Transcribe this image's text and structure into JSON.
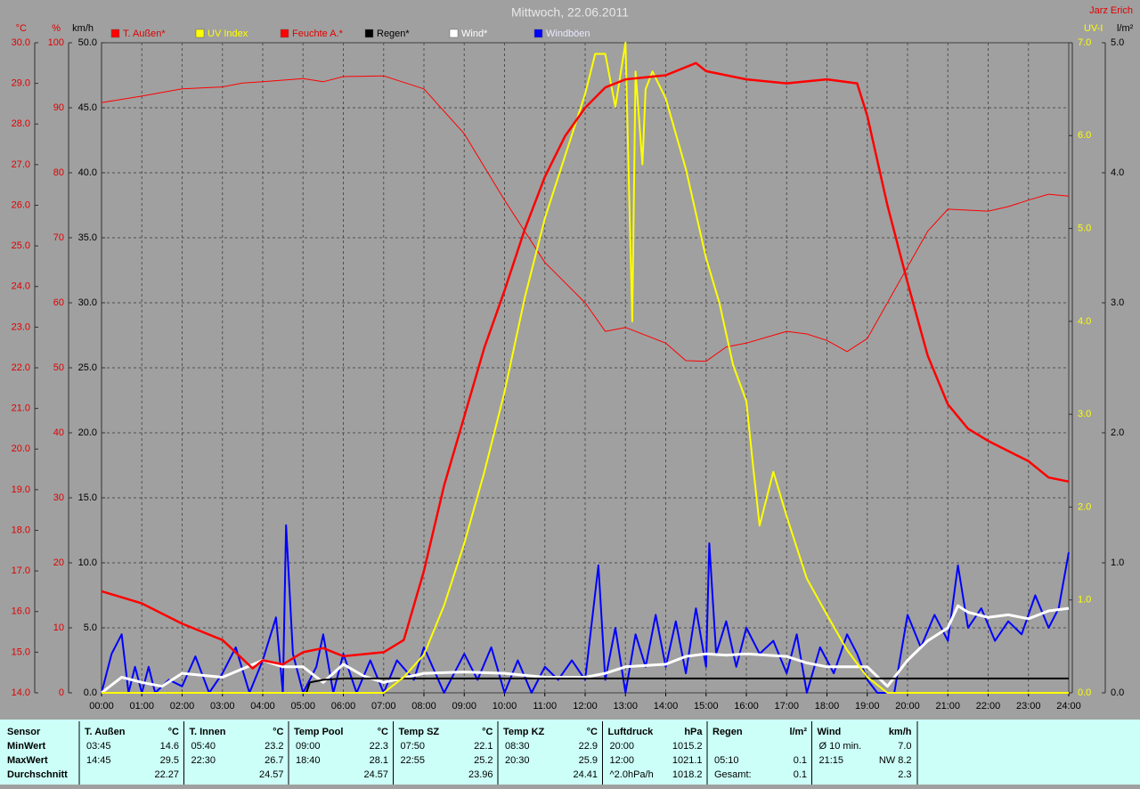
{
  "chart_data": {
    "type": "line",
    "title": "Mittwoch, 22.06.2011",
    "author": "Jarz Erich",
    "xlim": [
      0,
      24
    ],
    "xticks": [
      {
        "value": 0,
        "label": "00:00"
      },
      {
        "value": 1,
        "label": "01:00"
      },
      {
        "value": 2,
        "label": "02:00"
      },
      {
        "value": 3,
        "label": "03:00"
      },
      {
        "value": 4,
        "label": "04:00"
      },
      {
        "value": 5,
        "label": "05:00"
      },
      {
        "value": 6,
        "label": "06:00"
      },
      {
        "value": 7,
        "label": "07:00"
      },
      {
        "value": 8,
        "label": "08:00"
      },
      {
        "value": 9,
        "label": "09:00"
      },
      {
        "value": 10,
        "label": "10:00"
      },
      {
        "value": 11,
        "label": "11:00"
      },
      {
        "value": 12,
        "label": "12:00"
      },
      {
        "value": 13,
        "label": "13:00"
      },
      {
        "value": 14,
        "label": "14:00"
      },
      {
        "value": 15,
        "label": "15:00"
      },
      {
        "value": 16,
        "label": "16:00"
      },
      {
        "value": 17,
        "label": "17:00"
      },
      {
        "value": 18,
        "label": "18:00"
      },
      {
        "value": 19,
        "label": "19:00"
      },
      {
        "value": 20,
        "label": "20:00"
      },
      {
        "value": 21,
        "label": "21:00"
      },
      {
        "value": 22,
        "label": "22:00"
      },
      {
        "value": 23,
        "label": "23:00"
      },
      {
        "value": 24,
        "label": "24:00"
      }
    ],
    "grid": true,
    "y_axes": [
      {
        "label": "°C",
        "color": "#e00000",
        "side": "left",
        "lim": [
          14,
          30
        ],
        "ticks": [
          {
            "value": 30,
            "label": "30.0"
          },
          {
            "value": 29,
            "label": "29.0"
          },
          {
            "value": 28,
            "label": "28.0"
          },
          {
            "value": 27,
            "label": "27.0"
          },
          {
            "value": 26,
            "label": "26.0"
          },
          {
            "value": 25,
            "label": "25.0"
          },
          {
            "value": 24,
            "label": "24.0"
          },
          {
            "value": 23,
            "label": "23.0"
          },
          {
            "value": 22,
            "label": "22.0"
          },
          {
            "value": 21,
            "label": "21.0"
          },
          {
            "value": 20,
            "label": "20.0"
          },
          {
            "value": 19,
            "label": "19.0"
          },
          {
            "value": 18,
            "label": "18.0"
          },
          {
            "value": 17,
            "label": "17.0"
          },
          {
            "value": 16,
            "label": "16.0"
          },
          {
            "value": 15,
            "label": "15.0"
          },
          {
            "value": 14,
            "label": "14.0"
          }
        ]
      },
      {
        "label": "%",
        "color": "#e00000",
        "side": "left",
        "lim": [
          0,
          100
        ],
        "ticks": [
          100,
          90,
          80,
          70,
          60,
          50,
          40,
          30,
          20,
          10,
          0
        ]
      },
      {
        "label": "km/h",
        "color": "#000000",
        "side": "left",
        "lim": [
          0,
          50
        ],
        "grid": true,
        "ticks": [
          {
            "value": 50,
            "label": "50.0"
          },
          {
            "value": 45,
            "label": "45.0"
          },
          {
            "value": 40,
            "label": "40.0"
          },
          {
            "value": 35,
            "label": "35.0"
          },
          {
            "value": 30,
            "label": "30.0"
          },
          {
            "value": 25,
            "label": "25.0"
          },
          {
            "value": 20,
            "label": "20.0"
          },
          {
            "value": 15,
            "label": "15.0"
          },
          {
            "value": 10,
            "label": "10.0"
          },
          {
            "value": 5,
            "label": "5.0"
          },
          {
            "value": 0,
            "label": "0.0"
          }
        ]
      },
      {
        "label": "UV-I",
        "color": "#ffff00",
        "side": "right",
        "lim": [
          0,
          7
        ],
        "ticks": [
          {
            "value": 7,
            "label": "7.0"
          },
          {
            "value": 6,
            "label": "6.0"
          },
          {
            "value": 5,
            "label": "5.0"
          },
          {
            "value": 4,
            "label": "4.0"
          },
          {
            "value": 3,
            "label": "3.0"
          },
          {
            "value": 2,
            "label": "2.0"
          },
          {
            "value": 1,
            "label": "1.0"
          },
          {
            "value": 0,
            "label": "0.0"
          }
        ]
      },
      {
        "label": "l/m²",
        "color": "#000000",
        "side": "right",
        "lim": [
          0,
          5
        ],
        "ticks": [
          {
            "value": 5,
            "label": "5.0"
          },
          {
            "value": 4,
            "label": "4.0"
          },
          {
            "value": 3,
            "label": "3.0"
          },
          {
            "value": 2,
            "label": "2.0"
          },
          {
            "value": 1,
            "label": "1.0"
          },
          {
            "value": 0,
            "label": "0.0"
          }
        ]
      }
    ],
    "series": [
      {
        "name": "T. Außen*",
        "color": "#ff0000",
        "width": 2.5,
        "axis": 0,
        "x": [
          0,
          1,
          2,
          3,
          3.75,
          4,
          4.5,
          5,
          5.5,
          6,
          7,
          7.5,
          8,
          8.5,
          9,
          9.5,
          10,
          10.5,
          11,
          11.5,
          12,
          12.5,
          13,
          14,
          14.75,
          15,
          16,
          17,
          18,
          18.75,
          19,
          19.5,
          20,
          20.5,
          21,
          21.5,
          22,
          23,
          23.5,
          24
        ],
        "values": [
          16.5,
          16.2,
          15.7,
          15.3,
          14.6,
          14.8,
          14.7,
          15.0,
          15.1,
          14.9,
          15.0,
          15.3,
          17.0,
          19.1,
          20.8,
          22.5,
          23.9,
          25.4,
          26.7,
          27.7,
          28.4,
          28.9,
          29.1,
          29.2,
          29.5,
          29.3,
          29.1,
          29.0,
          29.1,
          29.0,
          28.2,
          26.0,
          24.1,
          22.3,
          21.1,
          20.5,
          20.2,
          19.7,
          19.3,
          19.2
        ]
      },
      {
        "name": "UV Index",
        "color": "#ffff00",
        "width": 2,
        "axis": 3,
        "x": [
          0,
          7,
          7.5,
          8,
          8.5,
          9,
          9.5,
          10,
          10.5,
          11,
          11.5,
          12,
          12.25,
          12.5,
          12.75,
          13,
          13.17,
          13.25,
          13.42,
          13.5,
          13.67,
          14,
          14.5,
          15,
          15.33,
          15.67,
          16,
          16.17,
          16.33,
          16.67,
          17,
          17.5,
          18,
          18.5,
          19,
          19.5,
          24
        ],
        "values": [
          0,
          0,
          0.17,
          0.41,
          0.94,
          1.61,
          2.38,
          3.24,
          4.25,
          5.11,
          5.78,
          6.45,
          6.88,
          6.88,
          6.31,
          7.0,
          4.0,
          6.69,
          5.69,
          6.5,
          6.69,
          6.4,
          5.64,
          4.68,
          4.2,
          3.53,
          3.14,
          2.43,
          1.8,
          2.38,
          1.9,
          1.23,
          0.84,
          0.46,
          0.17,
          0,
          0
        ]
      },
      {
        "name": "Feuchte A.*",
        "color": "#ff0000",
        "width": 1,
        "axis": 1,
        "x": [
          0,
          1,
          2,
          3,
          3.5,
          4,
          5,
          5.5,
          6,
          7,
          8,
          9,
          10,
          11,
          12,
          12.5,
          13,
          14,
          14.5,
          15,
          15.5,
          16,
          17,
          17.5,
          18,
          18.5,
          19,
          19.5,
          20,
          20.5,
          21,
          22,
          22.5,
          23,
          23.5,
          24
        ],
        "values": [
          90.8,
          91.8,
          92.9,
          93.2,
          93.8,
          94,
          94.5,
          94,
          94.8,
          94.9,
          92.9,
          86,
          75.8,
          66.2,
          60,
          55.6,
          56.2,
          53.8,
          51.1,
          51,
          53.2,
          53.8,
          55.6,
          55.2,
          54.2,
          52.5,
          54.5,
          60,
          65.5,
          71,
          74.4,
          74.1,
          74.8,
          75.8,
          76.7,
          76.4
        ]
      },
      {
        "name": "Regen*",
        "color": "#000000",
        "width": 2,
        "axis": 4,
        "x": [
          0,
          5.08,
          5.17,
          5.5,
          6,
          24
        ],
        "values": [
          0,
          0,
          0.08,
          0.1,
          0.11,
          0.11
        ]
      },
      {
        "name": "Wind*",
        "color": "#ffffff",
        "width": 3,
        "axis": 2,
        "x": [
          0,
          0.5,
          1,
          1.5,
          2,
          3,
          4,
          4.5,
          5,
          5.5,
          6,
          6.5,
          7,
          8,
          9,
          10,
          11,
          12,
          12.5,
          13,
          14,
          14.5,
          15,
          15.5,
          16,
          17,
          17.5,
          18,
          19,
          19.5,
          20,
          20.5,
          21,
          21.25,
          21.5,
          22,
          22.5,
          23,
          23.5,
          24
        ],
        "values": [
          0,
          1.2,
          0.8,
          0.5,
          1.5,
          1.2,
          2.5,
          2.0,
          2.0,
          0.8,
          2.2,
          1.3,
          0.8,
          1.5,
          1.6,
          1.5,
          1.2,
          1.2,
          1.5,
          2.0,
          2.2,
          2.8,
          3.0,
          2.9,
          3.0,
          2.8,
          2.3,
          2.0,
          2.0,
          0.5,
          2.5,
          4.0,
          5.0,
          6.7,
          6.2,
          5.8,
          6.0,
          5.7,
          6.3,
          6.5
        ]
      },
      {
        "name": "Windböen",
        "color": "#0000ff",
        "width": 2,
        "axis": 2,
        "x": [
          0,
          0.25,
          0.5,
          0.67,
          0.83,
          1,
          1.17,
          1.33,
          1.67,
          2,
          2.33,
          2.67,
          3,
          3.33,
          3.67,
          4,
          4.33,
          4.5,
          4.58,
          4.75,
          5,
          5.33,
          5.5,
          5.75,
          6,
          6.33,
          6.67,
          7,
          7.33,
          7.75,
          8,
          8.5,
          9,
          9.33,
          9.67,
          10,
          10.33,
          10.67,
          11,
          11.33,
          11.67,
          12,
          12.33,
          12.5,
          12.75,
          13,
          13.25,
          13.5,
          13.75,
          14,
          14.25,
          14.5,
          14.75,
          15,
          15.08,
          15.25,
          15.5,
          15.75,
          16,
          16.33,
          16.67,
          17,
          17.25,
          17.5,
          17.83,
          18.17,
          18.5,
          18.75,
          19,
          19.25,
          19.67,
          20,
          20.33,
          20.67,
          21,
          21.25,
          21.5,
          21.83,
          22.17,
          22.5,
          22.83,
          23.17,
          23.5,
          23.75,
          24
        ],
        "values": [
          0,
          3,
          4.5,
          0,
          2,
          0,
          2,
          0,
          1,
          0.5,
          2.8,
          0,
          1.5,
          3.5,
          0,
          2.5,
          5.8,
          0,
          12.9,
          3,
          0,
          2,
          4.5,
          0,
          3,
          0,
          2.5,
          0,
          2.5,
          1,
          3.5,
          0,
          3,
          1,
          3.5,
          0,
          2.5,
          0,
          2,
          1,
          2.5,
          1,
          9.8,
          1,
          5,
          0,
          4.5,
          2,
          6,
          2,
          5.5,
          1.5,
          6.5,
          2,
          11.5,
          3,
          5.5,
          2,
          5,
          3,
          4,
          1.5,
          4.5,
          0,
          3.5,
          1.5,
          4.5,
          3,
          1,
          0,
          0,
          6,
          3.5,
          6,
          4,
          9.8,
          5,
          6.5,
          4,
          5.5,
          4.5,
          7.5,
          5,
          6.5,
          10.8
        ]
      }
    ]
  },
  "table": {
    "header": "Sensor",
    "row_labels": [
      "MinWert",
      "MaxWert",
      "Durchschnitt"
    ],
    "sections": [
      {
        "title": "T. Außen",
        "unit": "°C",
        "rows": [
          [
            "03:45",
            "14.6"
          ],
          [
            "14:45",
            "29.5"
          ],
          [
            null,
            "22.27"
          ]
        ]
      },
      {
        "title": "T. Innen",
        "unit": "°C",
        "rows": [
          [
            "05:40",
            "23.2"
          ],
          [
            "22:30",
            "26.7"
          ],
          [
            null,
            "24.57"
          ]
        ]
      },
      {
        "title": "Temp Pool",
        "unit": "°C",
        "rows": [
          [
            "09:00",
            "22.3"
          ],
          [
            "18:40",
            "28.1"
          ],
          [
            null,
            "24.57"
          ]
        ]
      },
      {
        "title": "Temp SZ",
        "unit": "°C",
        "rows": [
          [
            "07:50",
            "22.1"
          ],
          [
            "22:55",
            "25.2"
          ],
          [
            null,
            "23.96"
          ]
        ]
      },
      {
        "title": "Temp KZ",
        "unit": "°C",
        "rows": [
          [
            "08:30",
            "22.9"
          ],
          [
            "20:30",
            "25.9"
          ],
          [
            null,
            "24.41"
          ]
        ]
      },
      {
        "title": "Luftdruck",
        "unit": "hPa",
        "rows": [
          [
            "20:00",
            "1015.2"
          ],
          [
            "12:00",
            "1021.1"
          ],
          [
            "^2.0hPa/h",
            "1018.2"
          ]
        ]
      },
      {
        "title": "Regen",
        "unit": "l/m²",
        "rows": [
          [
            null,
            null
          ],
          [
            "05:10",
            "0.1"
          ],
          [
            "Gesamt:",
            "0.1"
          ]
        ]
      },
      {
        "title": "Wind",
        "unit": "km/h",
        "rows": [
          [
            "Ø 10 min.",
            "7.0"
          ],
          [
            "21:15",
            "NW 8.2"
          ],
          [
            null,
            "2.3"
          ]
        ]
      }
    ]
  }
}
